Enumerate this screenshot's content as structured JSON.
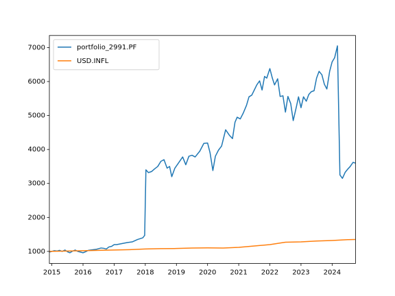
{
  "chart_data": {
    "type": "line",
    "xlim": [
      2014.92,
      2024.75
    ],
    "xticks": [
      2015,
      2016,
      2017,
      2018,
      2019,
      2020,
      2021,
      2022,
      2023,
      2024
    ],
    "ylim": [
      645,
      7355
    ],
    "yticks": [
      1000,
      2000,
      3000,
      4000,
      5000,
      6000,
      7000
    ],
    "legend": "upper left",
    "series": [
      {
        "name": "portfolio_2991.PF",
        "color": "#1f77b4",
        "x": [
          2014.92,
          2015.0,
          2015.08,
          2015.17,
          2015.25,
          2015.33,
          2015.42,
          2015.5,
          2015.58,
          2015.67,
          2015.75,
          2015.83,
          2015.92,
          2016.0,
          2016.08,
          2016.17,
          2016.25,
          2016.42,
          2016.58,
          2016.67,
          2016.75,
          2016.83,
          2016.92,
          2017.0,
          2017.08,
          2017.25,
          2017.42,
          2017.58,
          2017.75,
          2017.92,
          2017.98,
          2018.02,
          2018.1,
          2018.2,
          2018.3,
          2018.4,
          2018.5,
          2018.6,
          2018.7,
          2018.78,
          2018.85,
          2018.95,
          2019.05,
          2019.2,
          2019.3,
          2019.4,
          2019.5,
          2019.6,
          2019.75,
          2019.88,
          2020.0,
          2020.08,
          2020.17,
          2020.25,
          2020.35,
          2020.45,
          2020.58,
          2020.7,
          2020.8,
          2020.88,
          2020.95,
          2021.05,
          2021.15,
          2021.25,
          2021.33,
          2021.42,
          2021.5,
          2021.58,
          2021.67,
          2021.75,
          2021.83,
          2021.9,
          2022.0,
          2022.08,
          2022.15,
          2022.25,
          2022.33,
          2022.42,
          2022.5,
          2022.58,
          2022.67,
          2022.75,
          2022.85,
          2022.92,
          2023.0,
          2023.08,
          2023.17,
          2023.25,
          2023.33,
          2023.42,
          2023.5,
          2023.58,
          2023.67,
          2023.75,
          2023.83,
          2023.92,
          2024.0,
          2024.08,
          2024.17,
          2024.25,
          2024.33,
          2024.42,
          2024.5,
          2024.58,
          2024.67,
          2024.75
        ],
        "values": [
          980,
          1000,
          1020,
          1010,
          1030,
          1000,
          1040,
          990,
          960,
          1010,
          1040,
          1000,
          980,
          960,
          990,
          1030,
          1040,
          1060,
          1100,
          1090,
          1070,
          1130,
          1150,
          1200,
          1200,
          1230,
          1260,
          1280,
          1350,
          1400,
          1470,
          3400,
          3320,
          3350,
          3430,
          3500,
          3650,
          3700,
          3450,
          3500,
          3200,
          3450,
          3580,
          3780,
          3550,
          3800,
          3830,
          3780,
          3950,
          4180,
          4190,
          3900,
          3380,
          3800,
          3980,
          4100,
          4580,
          4420,
          4320,
          4800,
          4950,
          4900,
          5080,
          5300,
          5550,
          5600,
          5750,
          5900,
          6020,
          5750,
          6150,
          6100,
          6380,
          6100,
          5900,
          6080,
          5560,
          5580,
          5100,
          5560,
          5350,
          4850,
          5250,
          5550,
          5230,
          5550,
          5420,
          5620,
          5700,
          5730,
          6100,
          6300,
          6200,
          5920,
          5780,
          6300,
          6580,
          6700,
          7050,
          3250,
          3150,
          3330,
          3420,
          3500,
          3620,
          3600
        ]
      },
      {
        "name": "USD.INFL",
        "color": "#ff7f0e",
        "x": [
          2014.92,
          2015.5,
          2016.0,
          2016.5,
          2017.0,
          2017.5,
          2018.0,
          2018.5,
          2019.0,
          2019.5,
          2020.0,
          2020.5,
          2021.0,
          2021.5,
          2022.0,
          2022.5,
          2023.0,
          2023.5,
          2024.0,
          2024.5,
          2024.75
        ],
        "values": [
          1000,
          1010,
          1020,
          1030,
          1040,
          1050,
          1070,
          1080,
          1085,
          1100,
          1105,
          1100,
          1120,
          1160,
          1200,
          1270,
          1280,
          1305,
          1320,
          1345,
          1350
        ]
      }
    ]
  }
}
